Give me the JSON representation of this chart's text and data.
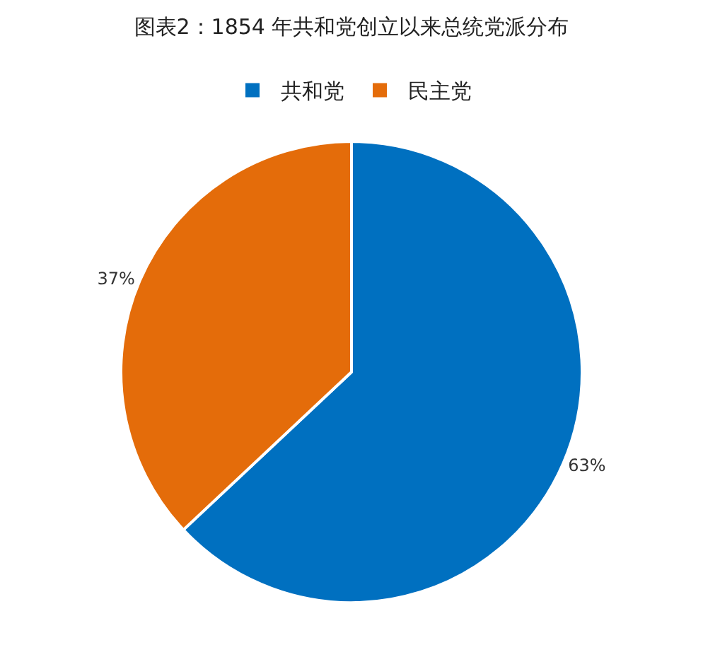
{
  "chart_data": {
    "type": "pie",
    "title": "图表2：1854 年共和党创立以来总统党派分布",
    "categories": [
      "共和党",
      "民主党"
    ],
    "values": [
      63,
      37
    ],
    "value_labels": [
      "63%",
      "37%"
    ],
    "colors": [
      "#0070c0",
      "#e46c0a"
    ],
    "legend": "top"
  }
}
